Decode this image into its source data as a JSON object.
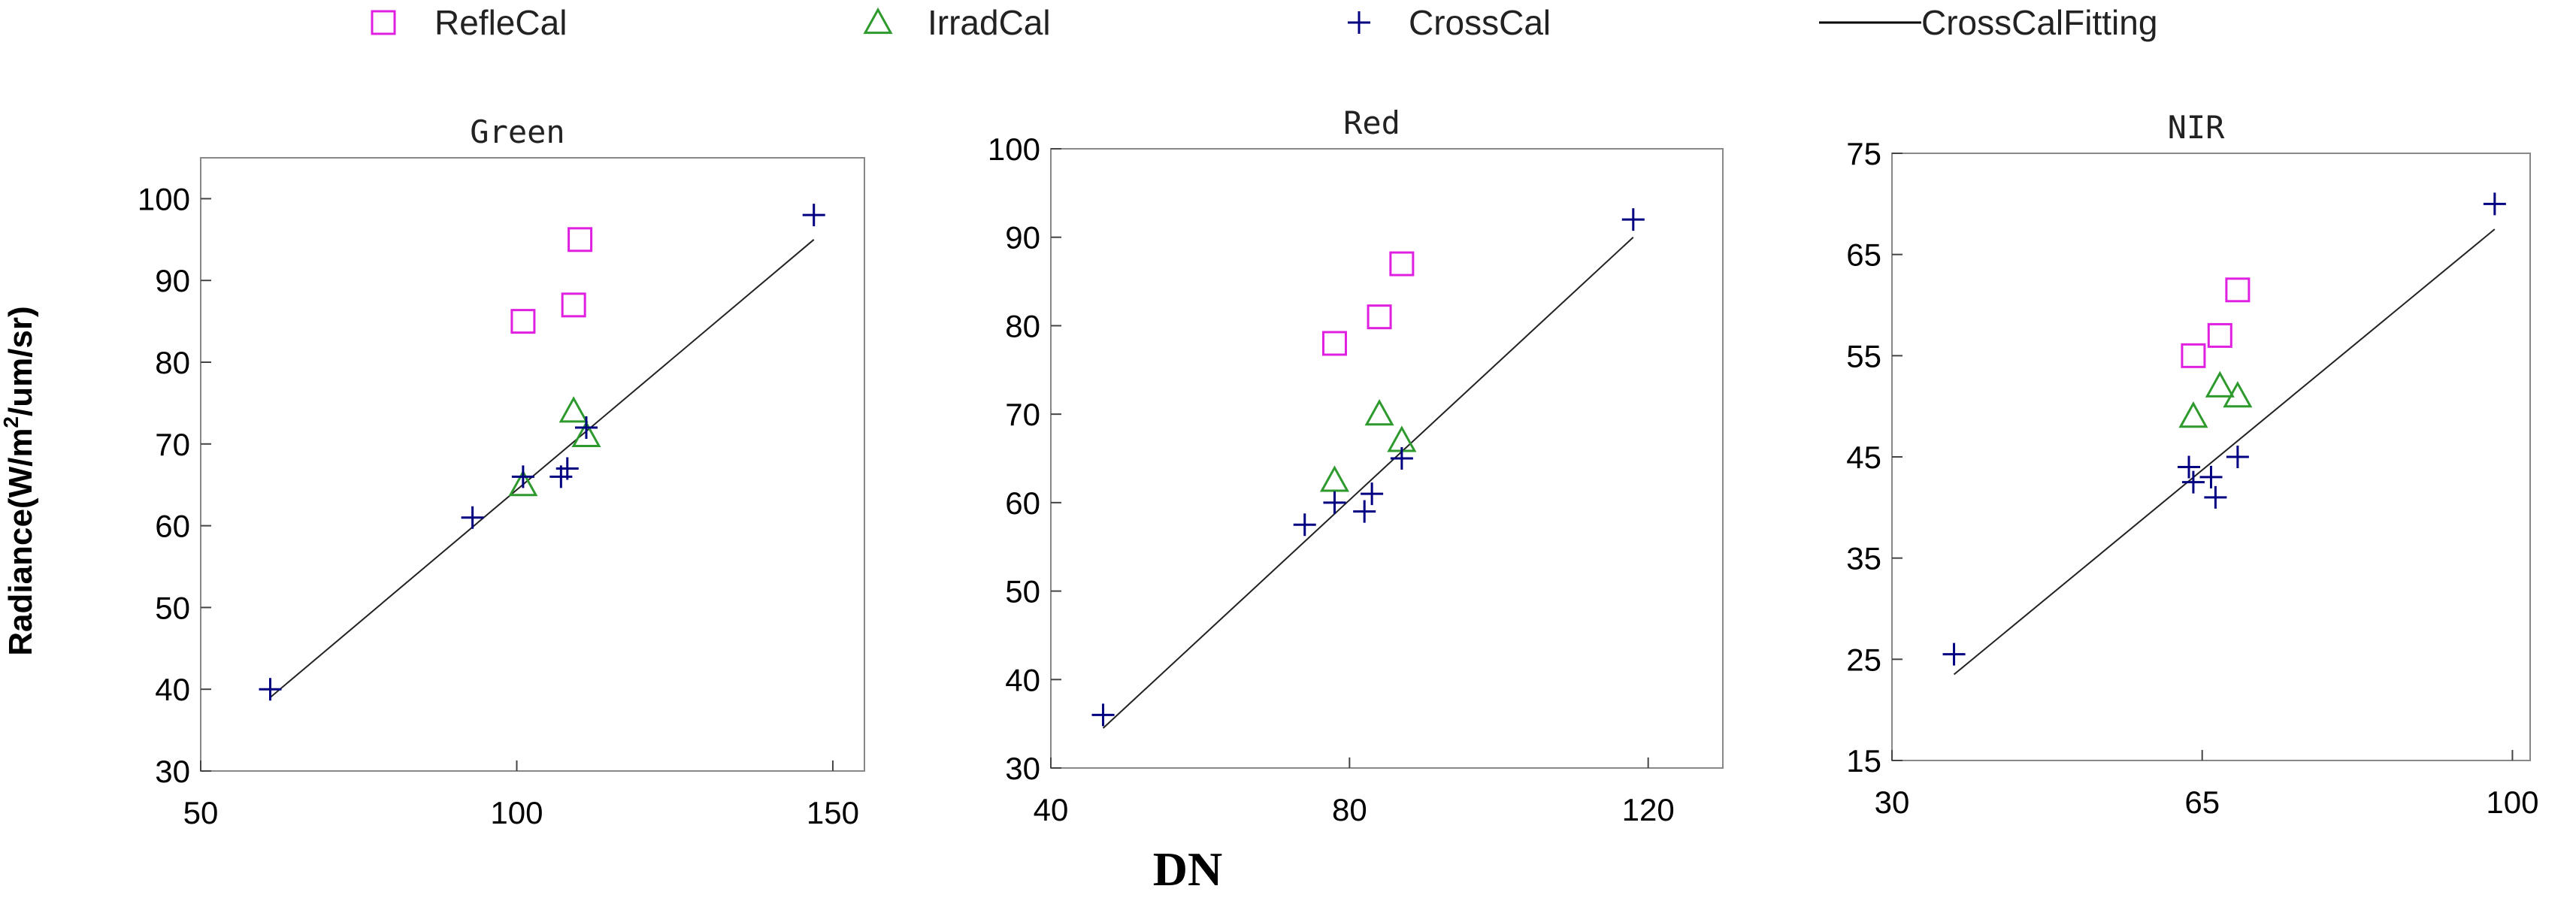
{
  "legend": {
    "placement": "top",
    "entries": [
      {
        "label": "RefleCal",
        "marker": "square",
        "color": "#E020E0"
      },
      {
        "label": "IrradCal",
        "marker": "triangle",
        "color": "#2E9A2E"
      },
      {
        "label": "CrossCal",
        "marker": "plus",
        "color": "#000080"
      },
      {
        "label": "CrossCalFitting",
        "marker": "line",
        "color": "#000000"
      }
    ]
  },
  "shared": {
    "ylabel": "Radiance(W/m2/um/sr)",
    "ylabel_parts": {
      "pre": "Radiance(W/m",
      "sup": "2",
      "post": "/um/sr)"
    },
    "xlabel": "DN"
  },
  "chart_data": [
    {
      "type": "scatter",
      "title": "Green",
      "xlim": [
        50,
        155
      ],
      "ylim": [
        30,
        105
      ],
      "xticks": [
        50,
        100,
        150
      ],
      "yticks": [
        30,
        40,
        50,
        60,
        70,
        80,
        90,
        100
      ],
      "grid": false,
      "series": [
        {
          "name": "RefleCal",
          "points": [
            [
              101,
              85
            ],
            [
              109,
              87
            ],
            [
              110,
              95
            ]
          ]
        },
        {
          "name": "IrradCal",
          "points": [
            [
              101,
              65
            ],
            [
              109,
              74
            ],
            [
              111,
              71
            ]
          ]
        },
        {
          "name": "CrossCal",
          "points": [
            [
              61,
              40
            ],
            [
              93,
              61
            ],
            [
              101,
              66
            ],
            [
              107,
              66
            ],
            [
              108,
              67
            ],
            [
              111,
              72
            ],
            [
              147,
              98
            ]
          ]
        }
      ],
      "fit": {
        "x": [
          61,
          147
        ],
        "y": [
          39,
          95
        ]
      }
    },
    {
      "type": "scatter",
      "title": "Red",
      "xlim": [
        40,
        130
      ],
      "ylim": [
        30,
        100
      ],
      "xticks": [
        40,
        80,
        120
      ],
      "yticks": [
        30,
        40,
        50,
        60,
        70,
        80,
        90,
        100
      ],
      "grid": false,
      "series": [
        {
          "name": "RefleCal",
          "points": [
            [
              78,
              78
            ],
            [
              84,
              81
            ],
            [
              87,
              87
            ]
          ]
        },
        {
          "name": "IrradCal",
          "points": [
            [
              78,
              62.5
            ],
            [
              84,
              70
            ],
            [
              87,
              67
            ]
          ]
        },
        {
          "name": "CrossCal",
          "points": [
            [
              47,
              36
            ],
            [
              74,
              57.5
            ],
            [
              78,
              60
            ],
            [
              82,
              59
            ],
            [
              83,
              61
            ],
            [
              87,
              65
            ],
            [
              118,
              92
            ]
          ]
        }
      ],
      "fit": {
        "x": [
          47,
          118
        ],
        "y": [
          34.5,
          90
        ]
      }
    },
    {
      "type": "scatter",
      "title": "NIR",
      "xlim": [
        30,
        102
      ],
      "ylim": [
        15,
        75
      ],
      "xticks": [
        30,
        65,
        100
      ],
      "yticks": [
        15,
        25,
        35,
        45,
        55,
        65,
        75
      ],
      "grid": false,
      "series": [
        {
          "name": "RefleCal",
          "points": [
            [
              64,
              55
            ],
            [
              67,
              57
            ],
            [
              69,
              61.5
            ]
          ]
        },
        {
          "name": "IrradCal",
          "points": [
            [
              64,
              49
            ],
            [
              67,
              52
            ],
            [
              69,
              51
            ]
          ]
        },
        {
          "name": "CrossCal",
          "points": [
            [
              37,
              25.5
            ],
            [
              63.5,
              44
            ],
            [
              64,
              42.5
            ],
            [
              66,
              43
            ],
            [
              66.5,
              41
            ],
            [
              69,
              45
            ],
            [
              98,
              70
            ]
          ]
        }
      ],
      "fit": {
        "x": [
          37,
          98
        ],
        "y": [
          23.5,
          67.5
        ]
      }
    }
  ]
}
